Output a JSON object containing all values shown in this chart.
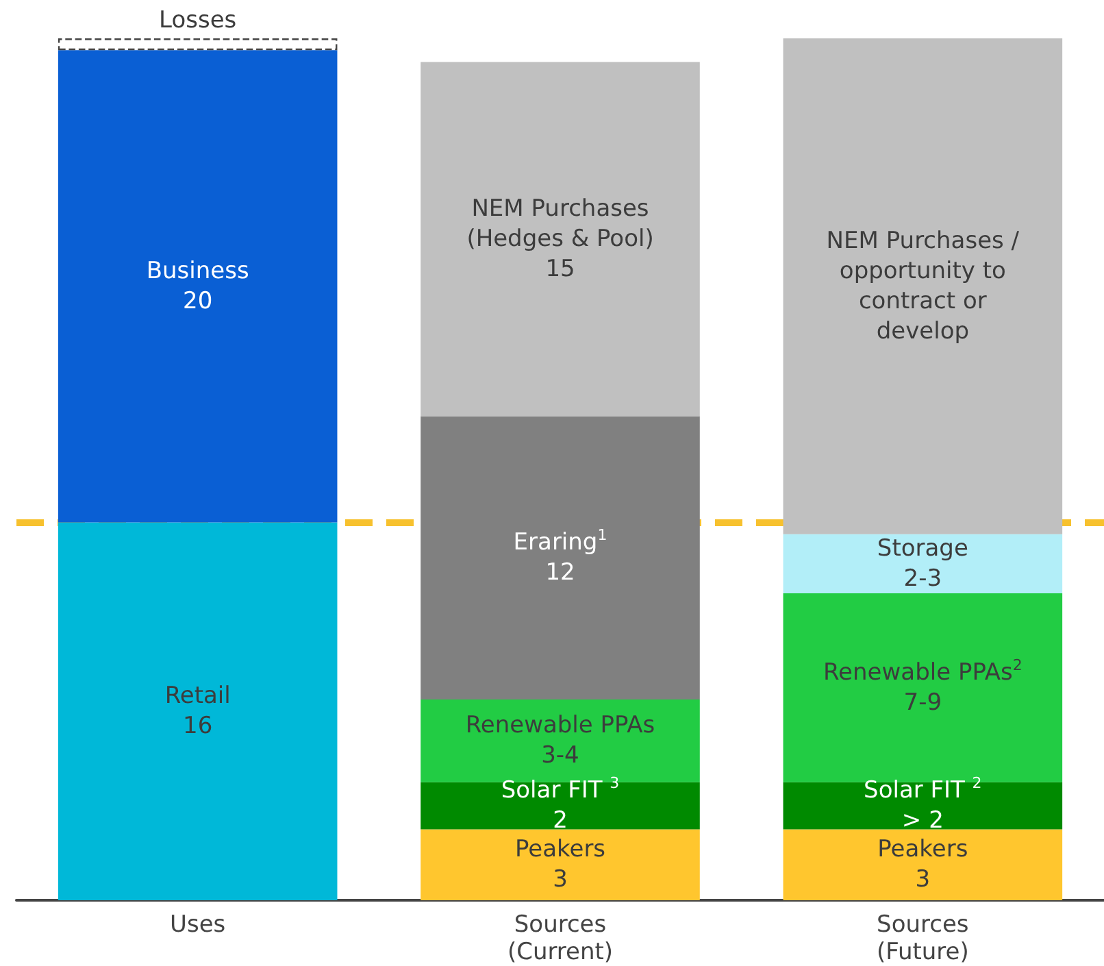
{
  "chart_data": {
    "type": "bar",
    "stacked": true,
    "categories": [
      "Uses",
      "Sources\n(Current)",
      "Sources\n(Future)"
    ],
    "series": [
      {
        "values": [
          16,
          3,
          3
        ],
        "colors": [
          "#00b8d8",
          "#ffc62e",
          "#ffc62e"
        ],
        "value_labels": [
          "Retail\n16",
          "Peakers\n3",
          "Peakers\n3"
        ]
      },
      {
        "values": [
          20,
          2,
          2
        ],
        "colors": [
          "#0a5fd4",
          "#008a00",
          "#008a00"
        ],
        "value_labels": [
          "Business\n20",
          "Solar FIT $^{3}$\n2",
          "Solar FIT $^{2}$\n> 2"
        ]
      },
      {
        "values": [
          null,
          3.5,
          8
        ],
        "colors": [
          null,
          "#22cc44",
          "#22cc44"
        ],
        "value_labels": [
          null,
          "Renewable PPAs\n3-4",
          "Renewable PPAs$^{2}$\n7-9"
        ]
      },
      {
        "values": [
          null,
          12,
          2.5
        ],
        "colors": [
          null,
          "#808080",
          "#b2eef8"
        ],
        "value_labels": [
          null,
          "Eraring$^{1}$\n12",
          "Storage\n2-3"
        ]
      },
      {
        "values": [
          null,
          15,
          21
        ],
        "colors": [
          null,
          "#c0c0c0",
          "#c0c0c0"
        ],
        "value_labels": [
          null,
          "NEM Purchases\n(Hedges & Pool)\n15",
          "NEM Purchases /\nopportunity to\ncontract or\ndevelop"
        ]
      },
      {
        "values": [
          0.5,
          null,
          null
        ],
        "colors": [
          "#ffffff",
          null,
          null
        ],
        "line_style": "dashed",
        "value_labels": [
          "Losses",
          null,
          null
        ]
      }
    ],
    "ylim": [
      0,
      36.5
    ],
    "ref_lines": [
      {
        "axis": "y",
        "value": 16,
        "color": "#f7c12e",
        "line_style": "dashed"
      }
    ],
    "grid": false
  }
}
